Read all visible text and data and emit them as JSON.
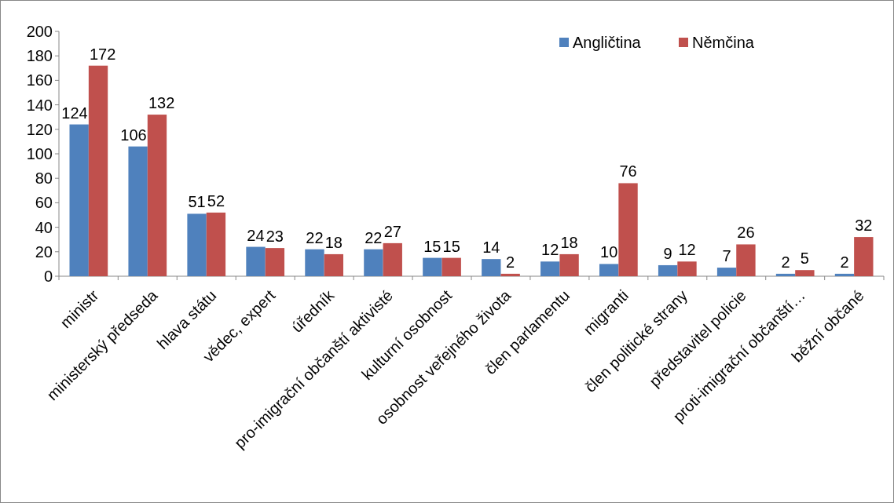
{
  "chart_data": {
    "type": "bar",
    "categories": [
      "ministr",
      "ministerský předseda",
      "hlava státu",
      "vědec, expert",
      "úředník",
      "pro-imigrační občanští aktivisté",
      "kulturní osobnost",
      "osobnost veřejného života",
      "člen parlamentu",
      "migranti",
      "člen politické strany",
      "představitel policie",
      "proti-imigrační občanští…",
      "běžní občané"
    ],
    "series": [
      {
        "name": "Angličtina",
        "color": "#4f81bd",
        "values": [
          124,
          106,
          51,
          24,
          22,
          22,
          15,
          14,
          12,
          10,
          9,
          7,
          2,
          2
        ]
      },
      {
        "name": "Němčina",
        "color": "#c0504d",
        "values": [
          172,
          132,
          52,
          23,
          18,
          27,
          15,
          2,
          18,
          76,
          12,
          26,
          5,
          32
        ]
      }
    ],
    "ylim": [
      0,
      200
    ],
    "yticks": [
      0,
      20,
      40,
      60,
      80,
      100,
      120,
      140,
      160,
      180,
      200
    ],
    "data_labels": true,
    "legend": "top right",
    "grid": false
  }
}
